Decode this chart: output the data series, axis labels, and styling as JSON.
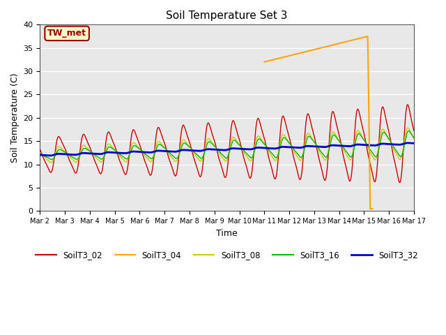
{
  "title": "Soil Temperature Set 3",
  "xlabel": "Time",
  "ylabel": "Soil Temperature (C)",
  "ylim": [
    0,
    40
  ],
  "annotation": "TW_met",
  "annotation_color": "#990000",
  "annotation_bg": "#FFFFCC",
  "bg_color": "#E8E8E8",
  "series": {
    "SoilT3_02": {
      "color": "#CC0000",
      "linewidth": 1.0
    },
    "SoilT3_04": {
      "color": "#FFA500",
      "linewidth": 1.5
    },
    "SoilT3_08": {
      "color": "#CCCC00",
      "linewidth": 1.0
    },
    "SoilT3_16": {
      "color": "#00BB00",
      "linewidth": 1.0
    },
    "SoilT3_32": {
      "color": "#0000CC",
      "linewidth": 2.0
    }
  },
  "xtick_labels": [
    "Mar 2",
    "Mar 3",
    "Mar 4",
    "Mar 5",
    "Mar 6",
    "Mar 7",
    "Mar 8",
    "Mar 9",
    "Mar 10",
    "Mar 11",
    "Mar 12",
    "Mar 13",
    "Mar 14",
    "Mar 15",
    "Mar 16",
    "Mar 17"
  ],
  "xtick_positions": [
    2,
    3,
    4,
    5,
    6,
    7,
    8,
    9,
    10,
    11,
    12,
    13,
    14,
    15,
    16,
    17
  ],
  "xlim": [
    2,
    17
  ],
  "ytick_positions": [
    0,
    5,
    10,
    15,
    20,
    25,
    30,
    35,
    40
  ]
}
